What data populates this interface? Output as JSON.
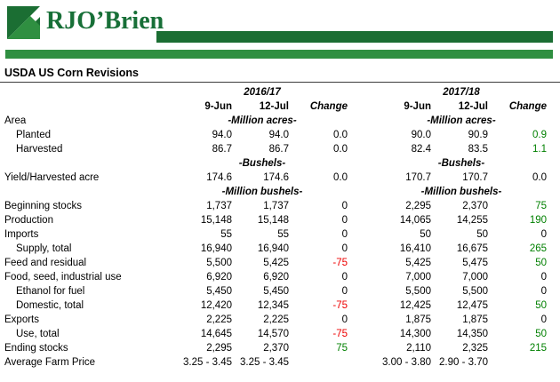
{
  "logo": {
    "text": "RJO’Brien"
  },
  "colors": {
    "brand_dark": "#1b6e33",
    "brand_light": "#2f8f41",
    "brand_text": "#176f37",
    "positive": "#008000",
    "negative": "#ee0000"
  },
  "title": "USDA US Corn Revisions",
  "table": {
    "group_headers": [
      "2016/17",
      "2017/18"
    ],
    "column_headers": [
      "9-Jun",
      "12-Jul",
      "Change"
    ],
    "rows": [
      {
        "label": "Area",
        "indent": 0,
        "unit": "-Million acres-"
      },
      {
        "label": "Planted",
        "indent": 1,
        "cells": [
          {
            "t": "94.0"
          },
          {
            "t": "94.0"
          },
          {
            "t": "0.0"
          },
          {
            "t": "90.0"
          },
          {
            "t": "90.9"
          },
          {
            "t": "0.9",
            "c": "pos"
          }
        ]
      },
      {
        "label": "Harvested",
        "indent": 1,
        "cells": [
          {
            "t": "86.7"
          },
          {
            "t": "86.7"
          },
          {
            "t": "0.0"
          },
          {
            "t": "82.4"
          },
          {
            "t": "83.5"
          },
          {
            "t": "1.1",
            "c": "pos"
          }
        ]
      },
      {
        "label": "",
        "indent": 0,
        "unit": "-Bushels-"
      },
      {
        "label": "Yield/Harvested acre",
        "indent": 0,
        "cells": [
          {
            "t": "174.6"
          },
          {
            "t": "174.6"
          },
          {
            "t": "0.0"
          },
          {
            "t": "170.7"
          },
          {
            "t": "170.7"
          },
          {
            "t": "0.0"
          }
        ]
      },
      {
        "label": "",
        "indent": 0,
        "unit": "-Million bushels-"
      },
      {
        "label": "Beginning stocks",
        "indent": 0,
        "cells": [
          {
            "t": "1,737"
          },
          {
            "t": "1,737"
          },
          {
            "t": "0"
          },
          {
            "t": "2,295"
          },
          {
            "t": "2,370"
          },
          {
            "t": "75",
            "c": "pos"
          }
        ]
      },
      {
        "label": "Production",
        "indent": 0,
        "cells": [
          {
            "t": "15,148"
          },
          {
            "t": "15,148"
          },
          {
            "t": "0"
          },
          {
            "t": "14,065"
          },
          {
            "t": "14,255"
          },
          {
            "t": "190",
            "c": "pos"
          }
        ]
      },
      {
        "label": "Imports",
        "indent": 0,
        "cells": [
          {
            "t": "55"
          },
          {
            "t": "55"
          },
          {
            "t": "0"
          },
          {
            "t": "50"
          },
          {
            "t": "50"
          },
          {
            "t": "0"
          }
        ]
      },
      {
        "label": "Supply, total",
        "indent": 1,
        "cells": [
          {
            "t": "16,940"
          },
          {
            "t": "16,940"
          },
          {
            "t": "0"
          },
          {
            "t": "16,410"
          },
          {
            "t": "16,675"
          },
          {
            "t": "265",
            "c": "pos"
          }
        ]
      },
      {
        "label": "Feed and residual",
        "indent": 0,
        "cells": [
          {
            "t": "5,500"
          },
          {
            "t": "5,425"
          },
          {
            "t": "-75",
            "c": "neg"
          },
          {
            "t": "5,425"
          },
          {
            "t": "5,475"
          },
          {
            "t": "50",
            "c": "pos"
          }
        ]
      },
      {
        "label": "Food, seed, industrial use",
        "indent": 0,
        "cells": [
          {
            "t": "6,920"
          },
          {
            "t": "6,920"
          },
          {
            "t": "0"
          },
          {
            "t": "7,000"
          },
          {
            "t": "7,000"
          },
          {
            "t": "0"
          }
        ]
      },
      {
        "label": "Ethanol for fuel",
        "indent": 1,
        "cells": [
          {
            "t": "5,450"
          },
          {
            "t": "5,450"
          },
          {
            "t": "0"
          },
          {
            "t": "5,500"
          },
          {
            "t": "5,500"
          },
          {
            "t": "0"
          }
        ]
      },
      {
        "label": "Domestic, total",
        "indent": 1,
        "cells": [
          {
            "t": "12,420"
          },
          {
            "t": "12,345"
          },
          {
            "t": "-75",
            "c": "neg"
          },
          {
            "t": "12,425"
          },
          {
            "t": "12,475"
          },
          {
            "t": "50",
            "c": "pos"
          }
        ]
      },
      {
        "label": "Exports",
        "indent": 0,
        "cells": [
          {
            "t": "2,225"
          },
          {
            "t": "2,225"
          },
          {
            "t": "0"
          },
          {
            "t": "1,875"
          },
          {
            "t": "1,875"
          },
          {
            "t": "0"
          }
        ]
      },
      {
        "label": "Use, total",
        "indent": 1,
        "cells": [
          {
            "t": "14,645"
          },
          {
            "t": "14,570"
          },
          {
            "t": "-75",
            "c": "neg"
          },
          {
            "t": "14,300"
          },
          {
            "t": "14,350"
          },
          {
            "t": "50",
            "c": "pos"
          }
        ]
      },
      {
        "label": "Ending stocks",
        "indent": 0,
        "cells": [
          {
            "t": "2,295"
          },
          {
            "t": "2,370"
          },
          {
            "t": "75",
            "c": "pos"
          },
          {
            "t": "2,110"
          },
          {
            "t": "2,325"
          },
          {
            "t": "215",
            "c": "pos"
          }
        ]
      },
      {
        "label": "Average Farm Price",
        "indent": 0,
        "cells": [
          {
            "t": "3.25 - 3.45"
          },
          {
            "t": "3.25 - 3.45"
          },
          {
            "t": ""
          },
          {
            "t": "3.00 - 3.80"
          },
          {
            "t": "2.90 - 3.70"
          },
          {
            "t": ""
          }
        ]
      }
    ]
  }
}
